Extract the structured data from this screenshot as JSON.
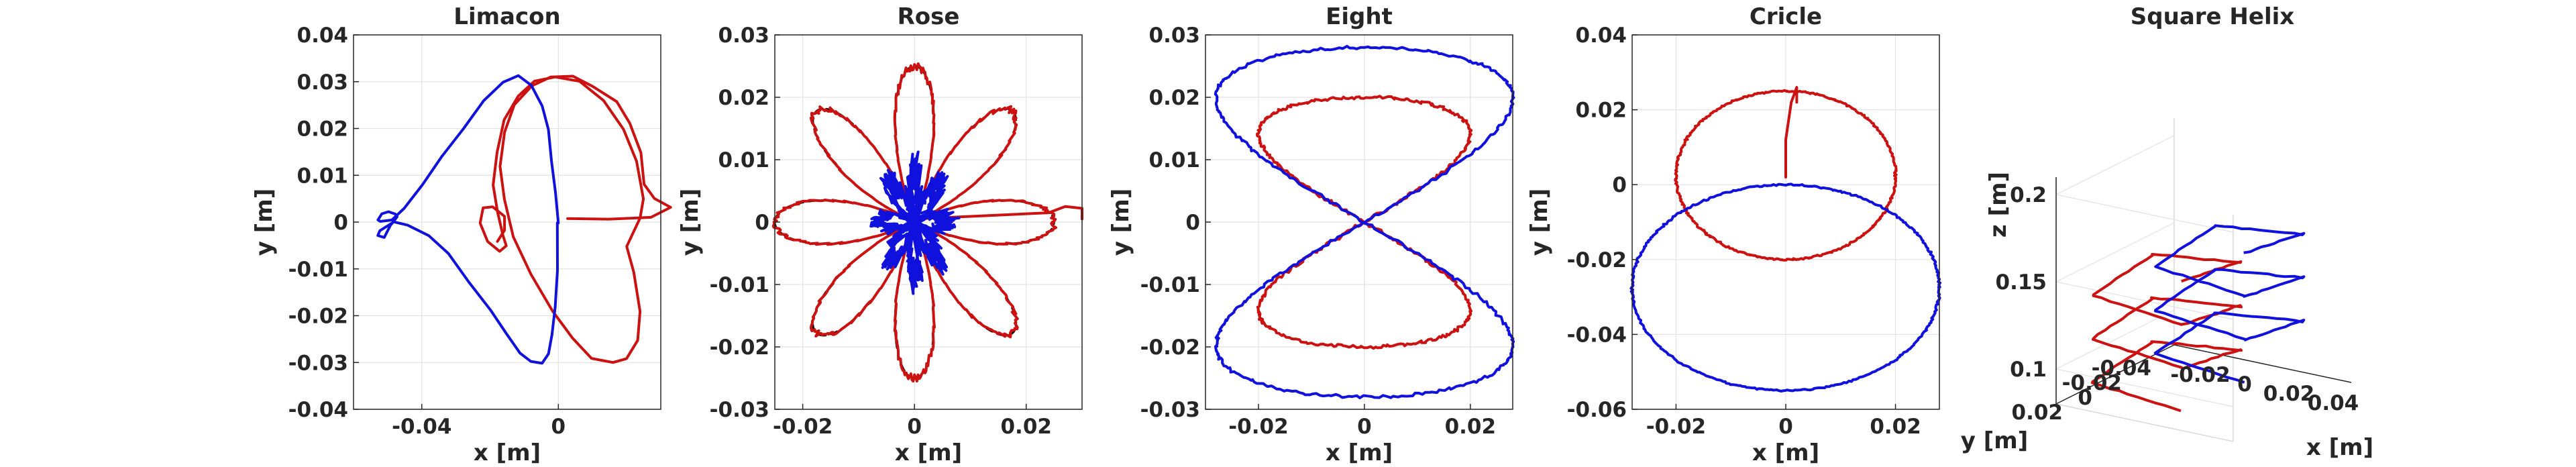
{
  "chart_data": [
    {
      "type": "line",
      "title": "Limacon",
      "xlabel": "x [m]",
      "ylabel": "y [m]",
      "xlim": [
        -0.06,
        0.03
      ],
      "ylim": [
        -0.04,
        0.04
      ],
      "xticks": [
        -0.04,
        0
      ],
      "xtick_labels": [
        "-0.04",
        "0"
      ],
      "yticks": [
        -0.04,
        -0.03,
        -0.02,
        -0.01,
        0,
        0.01,
        0.02,
        0.03,
        0.04
      ],
      "ytick_labels": [
        "-0.04",
        "-0.03",
        "-0.02",
        "-0.01",
        "0",
        "0.01",
        "0.02",
        "0.03",
        "0.04"
      ],
      "grid": true,
      "series": [
        {
          "color": "#cc1111",
          "x": [
            0.003,
            0.015,
            0.027,
            0.033,
            0.028,
            0.025,
            0.024,
            0.021,
            0.017,
            0.01,
            0.004,
            -0.002,
            -0.008,
            -0.013,
            -0.016,
            -0.017,
            -0.016,
            -0.013,
            -0.008,
            -0.002,
            0.004,
            0.01,
            0.016,
            0.02,
            0.023,
            0.024,
            0.022,
            0.02,
            0.024,
            0.025,
            0.023,
            0.019,
            0.013,
            0.006,
            -0.001,
            -0.007,
            -0.012,
            -0.016,
            -0.018,
            -0.019,
            -0.018,
            -0.016,
            -0.015,
            -0.017,
            -0.021,
            -0.023,
            -0.022,
            -0.019,
            -0.016,
            -0.016,
            -0.018
          ],
          "y": [
            0.0005,
            0.0008,
            0.001,
            0.003,
            0.005,
            0.008,
            0.015,
            0.021,
            0.026,
            0.029,
            0.031,
            0.031,
            0.029,
            0.025,
            0.019,
            0.012,
            0.005,
            -0.003,
            -0.011,
            -0.019,
            -0.025,
            -0.029,
            -0.03,
            -0.029,
            -0.025,
            -0.019,
            -0.011,
            -0.005,
            0.001,
            0.005,
            0.013,
            0.02,
            0.026,
            0.03,
            0.031,
            0.03,
            0.027,
            0.022,
            0.015,
            0.008,
            0.002,
            -0.003,
            -0.005,
            -0.006,
            -0.004,
            0.0,
            0.003,
            0.003,
            0.001,
            -0.002,
            -0.004
          ]
        },
        {
          "color": "#1111dd",
          "x": [
            0.0,
            0.0,
            -0.001,
            -0.002,
            -0.003,
            -0.005,
            -0.008,
            -0.011,
            -0.015,
            -0.02,
            -0.026,
            -0.032,
            -0.038,
            -0.044,
            -0.048,
            -0.052,
            -0.053,
            -0.051,
            -0.049,
            -0.047,
            -0.048,
            -0.05,
            -0.052,
            -0.053,
            -0.052,
            -0.049,
            -0.045,
            -0.04,
            -0.034,
            -0.028,
            -0.022,
            -0.016,
            -0.012,
            -0.008,
            -0.005,
            -0.003,
            -0.002,
            -0.001,
            0.0
          ],
          "y": [
            0.0,
            -0.01,
            -0.018,
            -0.024,
            -0.028,
            -0.03,
            -0.03,
            -0.028,
            -0.024,
            -0.019,
            -0.013,
            -0.007,
            -0.003,
            -0.0005,
            0.0,
            -0.002,
            -0.003,
            -0.003,
            -0.001,
            0.001,
            0.002,
            0.002,
            0.0015,
            0.0005,
            0.0,
            0.0005,
            0.003,
            0.008,
            0.014,
            0.02,
            0.026,
            0.03,
            0.031,
            0.029,
            0.025,
            0.02,
            0.013,
            0.006,
            0.0
          ]
        }
      ]
    },
    {
      "type": "line",
      "title": "Rose",
      "xlabel": "x [m]",
      "ylabel": "y [m]",
      "xlim": [
        -0.025,
        0.03
      ],
      "ylim": [
        -0.03,
        0.03
      ],
      "xticks": [
        -0.02,
        0,
        0.02
      ],
      "xtick_labels": [
        "-0.02",
        "0",
        "0.02"
      ],
      "yticks": [
        -0.03,
        -0.02,
        -0.01,
        0,
        0.01,
        0.02,
        0.03
      ],
      "ytick_labels": [
        "-0.03",
        "-0.02",
        "-0.01",
        "0",
        "0.01",
        "0.02",
        "0.03"
      ],
      "grid": true,
      "rose_petals": 8,
      "rose_amplitude": 0.025,
      "series": [
        {
          "color": "#cc1111",
          "description_free": true,
          "tail_x": [
            0.025,
            0.03
          ],
          "tail_y": [
            0.0,
            0.002
          ]
        },
        {
          "color": "#1111dd"
        },
        {
          "color": "#111111",
          "dashed": true
        }
      ]
    },
    {
      "type": "line",
      "title": "Eight",
      "xlabel": "x [m]",
      "ylabel": "y [m]",
      "xlim": [
        -0.03,
        0.028
      ],
      "ylim": [
        -0.03,
        0.03
      ],
      "xticks": [
        -0.02,
        0,
        0.02
      ],
      "xtick_labels": [
        "-0.02",
        "0",
        "0.02"
      ],
      "yticks": [
        -0.03,
        -0.02,
        -0.01,
        0,
        0.01,
        0.02,
        0.03
      ],
      "ytick_labels": [
        "-0.03",
        "-0.02",
        "-0.01",
        "0",
        "0.01",
        "0.02",
        "0.03"
      ],
      "grid": true,
      "series": [
        {
          "color": "#cc1111",
          "amp_x": 0.02,
          "amp_y": 0.02
        },
        {
          "color": "#1111dd",
          "amp_x": 0.028,
          "amp_y": 0.028
        }
      ]
    },
    {
      "type": "line",
      "title": "Cricle",
      "xlabel": "x [m]",
      "ylabel": "y [m]",
      "xlim": [
        -0.028,
        0.028
      ],
      "ylim": [
        -0.06,
        0.04
      ],
      "xticks": [
        -0.02,
        0,
        0.02
      ],
      "xtick_labels": [
        "-0.02",
        "0",
        "0.02"
      ],
      "yticks": [
        -0.06,
        -0.04,
        -0.02,
        0,
        0.02,
        0.04
      ],
      "ytick_labels": [
        "-0.06",
        "-0.04",
        "-0.02",
        "0",
        "0.02",
        "0.04"
      ],
      "grid": true,
      "series": [
        {
          "color": "#cc1111",
          "cx": 0.0,
          "cy": 0.0025,
          "rx": 0.02,
          "ry": 0.0225
        },
        {
          "color": "#1111dd",
          "cx": 0.0,
          "cy": -0.0275,
          "rx": 0.028,
          "ry": 0.0275
        }
      ]
    },
    {
      "type": "line",
      "title": "Square Helix",
      "xlabel": "x [m]",
      "ylabel": "y [m]",
      "zlabel": "z [m]",
      "xticks": [
        -0.02,
        0,
        0.02,
        0.04
      ],
      "xtick_labels": [
        "-0.02",
        "0",
        "0.02",
        "0.04"
      ],
      "yticks": [
        0.02,
        0,
        -0.02,
        -0.04
      ],
      "ytick_labels": [
        "0.02",
        "0",
        "-0.02",
        "-0.04"
      ],
      "zticks": [
        0.1,
        0.15,
        0.2
      ],
      "ztick_labels": [
        "0.1",
        "0.15",
        "0.2"
      ],
      "grid": true,
      "series": [
        {
          "color": "#cc1111"
        },
        {
          "color": "#1111dd"
        }
      ]
    }
  ]
}
